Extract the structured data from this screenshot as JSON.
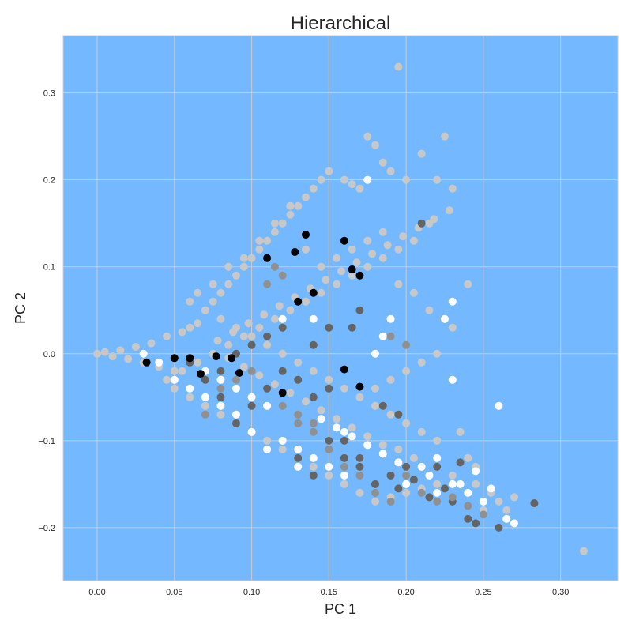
{
  "chart_data": {
    "type": "scatter",
    "title": "Hierarchical",
    "xlabel": "PC 1",
    "ylabel": "PC 2",
    "xlim": [
      -0.022,
      0.337
    ],
    "ylim": [
      -0.261,
      0.366
    ],
    "x_ticks": [
      {
        "value": 0.0,
        "label": "0.00"
      },
      {
        "value": 0.05,
        "label": "0.05"
      },
      {
        "value": 0.1,
        "label": "0.10"
      },
      {
        "value": 0.15,
        "label": "0.15"
      },
      {
        "value": 0.2,
        "label": "0.20"
      },
      {
        "value": 0.25,
        "label": "0.25"
      },
      {
        "value": 0.3,
        "label": "0.30"
      }
    ],
    "y_ticks": [
      {
        "value": -0.2,
        "label": "−0.2"
      },
      {
        "value": -0.1,
        "label": "−0.1"
      },
      {
        "value": 0.0,
        "label": "0.0"
      },
      {
        "value": 0.1,
        "label": "0.1"
      },
      {
        "value": 0.2,
        "label": "0.2"
      },
      {
        "value": 0.3,
        "label": "0.3"
      }
    ],
    "grid": true,
    "background_color": "#74b9ff",
    "cluster_colors": [
      "#c8c8c8",
      "#ffffff",
      "#646464",
      "#000000",
      "#909090"
    ],
    "series": [
      {
        "color": "#c8c8c8",
        "points": [
          [
            0.0,
            0.0
          ],
          [
            0.005,
            0.002
          ],
          [
            0.01,
            -0.003
          ],
          [
            0.015,
            0.004
          ],
          [
            0.02,
            -0.006
          ],
          [
            0.025,
            0.008
          ],
          [
            0.03,
            -0.01
          ],
          [
            0.035,
            0.012
          ],
          [
            0.04,
            -0.015
          ],
          [
            0.045,
            0.02
          ],
          [
            0.05,
            -0.02
          ],
          [
            0.055,
            0.025
          ],
          [
            0.06,
            0.03
          ],
          [
            0.065,
            0.035
          ],
          [
            0.07,
            0.05
          ],
          [
            0.075,
            0.06
          ],
          [
            0.08,
            0.07
          ],
          [
            0.085,
            0.08
          ],
          [
            0.09,
            0.09
          ],
          [
            0.095,
            0.1
          ],
          [
            0.1,
            0.11
          ],
          [
            0.105,
            0.12
          ],
          [
            0.11,
            0.13
          ],
          [
            0.115,
            0.14
          ],
          [
            0.12,
            0.15
          ],
          [
            0.125,
            0.16
          ],
          [
            0.13,
            0.17
          ],
          [
            0.135,
            0.18
          ],
          [
            0.14,
            0.19
          ],
          [
            0.145,
            0.2
          ],
          [
            0.15,
            0.21
          ],
          [
            0.16,
            0.2
          ],
          [
            0.165,
            0.195
          ],
          [
            0.17,
            0.19
          ],
          [
            0.175,
            0.25
          ],
          [
            0.18,
            0.24
          ],
          [
            0.185,
            0.22
          ],
          [
            0.19,
            0.21
          ],
          [
            0.195,
            0.33
          ],
          [
            0.2,
            0.2
          ],
          [
            0.21,
            0.23
          ],
          [
            0.22,
            0.2
          ],
          [
            0.225,
            0.25
          ],
          [
            0.23,
            0.19
          ],
          [
            0.24,
            0.08
          ],
          [
            0.215,
            0.15
          ],
          [
            0.205,
            0.13
          ],
          [
            0.195,
            0.12
          ],
          [
            0.185,
            0.11
          ],
          [
            0.175,
            0.1
          ],
          [
            0.165,
            0.09
          ],
          [
            0.155,
            0.08
          ],
          [
            0.145,
            0.07
          ],
          [
            0.135,
            0.06
          ],
          [
            0.125,
            0.05
          ],
          [
            0.115,
            0.04
          ],
          [
            0.105,
            0.03
          ],
          [
            0.095,
            0.02
          ],
          [
            0.085,
            0.01
          ],
          [
            0.075,
            0.0
          ],
          [
            0.065,
            -0.01
          ],
          [
            0.055,
            -0.02
          ],
          [
            0.045,
            -0.03
          ],
          [
            0.05,
            -0.04
          ],
          [
            0.06,
            -0.05
          ],
          [
            0.07,
            -0.06
          ],
          [
            0.08,
            -0.07
          ],
          [
            0.09,
            -0.08
          ],
          [
            0.1,
            -0.09
          ],
          [
            0.11,
            -0.1
          ],
          [
            0.12,
            -0.11
          ],
          [
            0.13,
            -0.12
          ],
          [
            0.14,
            -0.13
          ],
          [
            0.15,
            -0.14
          ],
          [
            0.16,
            -0.15
          ],
          [
            0.17,
            -0.16
          ],
          [
            0.18,
            -0.17
          ],
          [
            0.19,
            -0.165
          ],
          [
            0.2,
            -0.16
          ],
          [
            0.21,
            -0.155
          ],
          [
            0.22,
            -0.15
          ],
          [
            0.23,
            -0.14
          ],
          [
            0.235,
            -0.09
          ],
          [
            0.24,
            -0.12
          ],
          [
            0.245,
            -0.13
          ],
          [
            0.25,
            -0.18
          ],
          [
            0.26,
            -0.17
          ],
          [
            0.27,
            -0.165
          ],
          [
            0.315,
            -0.227
          ],
          [
            0.22,
            -0.1
          ],
          [
            0.21,
            -0.09
          ],
          [
            0.2,
            -0.08
          ],
          [
            0.19,
            -0.07
          ],
          [
            0.18,
            -0.06
          ],
          [
            0.17,
            -0.05
          ],
          [
            0.16,
            -0.04
          ],
          [
            0.15,
            -0.03
          ],
          [
            0.14,
            -0.02
          ],
          [
            0.13,
            -0.01
          ],
          [
            0.12,
            0.0
          ],
          [
            0.11,
            0.01
          ],
          [
            0.1,
            0.02
          ],
          [
            0.09,
            0.03
          ],
          [
            0.08,
            0.04
          ],
          [
            0.07,
            0.05
          ],
          [
            0.06,
            0.06
          ],
          [
            0.065,
            0.07
          ],
          [
            0.075,
            0.08
          ],
          [
            0.085,
            0.1
          ],
          [
            0.095,
            0.11
          ],
          [
            0.105,
            0.13
          ],
          [
            0.115,
            0.15
          ],
          [
            0.125,
            0.17
          ],
          [
            0.135,
            0.12
          ],
          [
            0.145,
            0.1
          ],
          [
            0.155,
            0.11
          ],
          [
            0.165,
            0.12
          ],
          [
            0.175,
            0.13
          ],
          [
            0.185,
            0.14
          ],
          [
            0.195,
            0.08
          ],
          [
            0.205,
            0.07
          ],
          [
            0.215,
            0.05
          ],
          [
            0.225,
            0.04
          ],
          [
            0.23,
            0.03
          ],
          [
            0.22,
            0.0
          ],
          [
            0.21,
            -0.01
          ],
          [
            0.2,
            -0.02
          ],
          [
            0.19,
            -0.03
          ],
          [
            0.18,
            -0.04
          ],
          [
            0.245,
            -0.15
          ],
          [
            0.255,
            -0.16
          ],
          [
            0.265,
            -0.18
          ],
          [
            0.205,
            -0.12
          ],
          [
            0.195,
            -0.11
          ],
          [
            0.185,
            -0.105
          ],
          [
            0.175,
            -0.095
          ],
          [
            0.165,
            -0.085
          ],
          [
            0.155,
            -0.075
          ],
          [
            0.145,
            -0.065
          ],
          [
            0.135,
            -0.055
          ],
          [
            0.125,
            -0.045
          ],
          [
            0.115,
            -0.035
          ],
          [
            0.105,
            -0.025
          ],
          [
            0.095,
            -0.015
          ],
          [
            0.085,
            -0.005
          ],
          [
            0.078,
            0.015
          ],
          [
            0.088,
            0.025
          ],
          [
            0.098,
            0.035
          ],
          [
            0.108,
            0.045
          ],
          [
            0.118,
            0.055
          ],
          [
            0.128,
            0.065
          ],
          [
            0.138,
            0.075
          ],
          [
            0.148,
            0.085
          ],
          [
            0.158,
            0.095
          ],
          [
            0.168,
            0.105
          ],
          [
            0.178,
            0.115
          ],
          [
            0.188,
            0.125
          ],
          [
            0.198,
            0.135
          ],
          [
            0.208,
            0.145
          ],
          [
            0.218,
            0.155
          ],
          [
            0.228,
            0.165
          ]
        ]
      },
      {
        "color": "#ffffff",
        "points": [
          [
            0.03,
            0.0
          ],
          [
            0.04,
            -0.01
          ],
          [
            0.05,
            -0.03
          ],
          [
            0.06,
            -0.04
          ],
          [
            0.07,
            -0.05
          ],
          [
            0.08,
            -0.06
          ],
          [
            0.09,
            -0.07
          ],
          [
            0.1,
            -0.09
          ],
          [
            0.11,
            -0.11
          ],
          [
            0.12,
            -0.1
          ],
          [
            0.13,
            -0.11
          ],
          [
            0.14,
            -0.12
          ],
          [
            0.15,
            -0.13
          ],
          [
            0.16,
            -0.14
          ],
          [
            0.17,
            -0.12
          ],
          [
            0.18,
            0.0
          ],
          [
            0.185,
            0.02
          ],
          [
            0.19,
            0.04
          ],
          [
            0.2,
            -0.15
          ],
          [
            0.21,
            -0.13
          ],
          [
            0.22,
            -0.16
          ],
          [
            0.23,
            -0.15
          ],
          [
            0.24,
            -0.16
          ],
          [
            0.25,
            -0.17
          ],
          [
            0.26,
            -0.06
          ],
          [
            0.265,
            -0.19
          ],
          [
            0.27,
            -0.195
          ],
          [
            0.23,
            0.06
          ],
          [
            0.225,
            0.04
          ],
          [
            0.23,
            -0.03
          ],
          [
            0.175,
            0.2
          ],
          [
            0.14,
            0.04
          ],
          [
            0.12,
            0.04
          ],
          [
            0.16,
            -0.09
          ],
          [
            0.15,
            -0.1
          ],
          [
            0.13,
            -0.13
          ],
          [
            0.145,
            -0.075
          ],
          [
            0.155,
            -0.085
          ],
          [
            0.165,
            -0.095
          ],
          [
            0.175,
            -0.105
          ],
          [
            0.185,
            -0.115
          ],
          [
            0.195,
            -0.125
          ],
          [
            0.215,
            -0.14
          ],
          [
            0.235,
            -0.15
          ],
          [
            0.255,
            -0.155
          ],
          [
            0.245,
            -0.135
          ],
          [
            0.22,
            -0.12
          ],
          [
            0.11,
            -0.06
          ],
          [
            0.1,
            -0.05
          ],
          [
            0.09,
            -0.04
          ],
          [
            0.08,
            -0.03
          ],
          [
            0.07,
            -0.02
          ]
        ]
      },
      {
        "color": "#646464",
        "points": [
          [
            0.06,
            -0.01
          ],
          [
            0.07,
            -0.03
          ],
          [
            0.08,
            -0.05
          ],
          [
            0.09,
            -0.08
          ],
          [
            0.1,
            -0.06
          ],
          [
            0.11,
            -0.04
          ],
          [
            0.12,
            -0.02
          ],
          [
            0.13,
            -0.03
          ],
          [
            0.14,
            -0.05
          ],
          [
            0.15,
            -0.04
          ],
          [
            0.16,
            -0.1
          ],
          [
            0.17,
            -0.12
          ],
          [
            0.18,
            -0.15
          ],
          [
            0.19,
            -0.14
          ],
          [
            0.2,
            -0.13
          ],
          [
            0.21,
            0.15
          ],
          [
            0.22,
            -0.13
          ],
          [
            0.23,
            -0.17
          ],
          [
            0.24,
            -0.19
          ],
          [
            0.245,
            -0.195
          ],
          [
            0.26,
            -0.2
          ],
          [
            0.283,
            -0.172
          ],
          [
            0.13,
            -0.12
          ],
          [
            0.14,
            -0.14
          ],
          [
            0.15,
            -0.1
          ],
          [
            0.16,
            -0.12
          ],
          [
            0.17,
            -0.13
          ],
          [
            0.185,
            -0.06
          ],
          [
            0.195,
            -0.07
          ],
          [
            0.195,
            -0.155
          ],
          [
            0.205,
            -0.145
          ],
          [
            0.215,
            -0.165
          ],
          [
            0.225,
            -0.155
          ],
          [
            0.235,
            -0.125
          ],
          [
            0.17,
            0.05
          ],
          [
            0.165,
            0.03
          ],
          [
            0.15,
            0.03
          ],
          [
            0.14,
            0.01
          ],
          [
            0.12,
            0.03
          ],
          [
            0.11,
            0.02
          ],
          [
            0.1,
            0.01
          ],
          [
            0.09,
            0.0
          ],
          [
            0.08,
            -0.02
          ]
        ]
      },
      {
        "color": "#000000",
        "points": [
          [
            0.032,
            -0.01
          ],
          [
            0.05,
            -0.005
          ],
          [
            0.06,
            -0.005
          ],
          [
            0.067,
            -0.023
          ],
          [
            0.077,
            -0.003
          ],
          [
            0.087,
            -0.005
          ],
          [
            0.092,
            -0.022
          ],
          [
            0.11,
            0.11
          ],
          [
            0.12,
            -0.045
          ],
          [
            0.128,
            0.117
          ],
          [
            0.135,
            0.137
          ],
          [
            0.16,
            -0.018
          ],
          [
            0.165,
            0.097
          ],
          [
            0.17,
            0.09
          ],
          [
            0.17,
            -0.038
          ],
          [
            0.16,
            0.13
          ],
          [
            0.14,
            0.07
          ],
          [
            0.13,
            0.06
          ]
        ]
      },
      {
        "color": "#909090",
        "points": [
          [
            0.07,
            -0.07
          ],
          [
            0.08,
            -0.04
          ],
          [
            0.09,
            -0.03
          ],
          [
            0.1,
            -0.02
          ],
          [
            0.11,
            0.08
          ],
          [
            0.12,
            -0.06
          ],
          [
            0.13,
            -0.08
          ],
          [
            0.14,
            -0.09
          ],
          [
            0.15,
            -0.11
          ],
          [
            0.16,
            -0.13
          ],
          [
            0.17,
            -0.14
          ],
          [
            0.18,
            -0.16
          ],
          [
            0.19,
            -0.17
          ],
          [
            0.2,
            -0.14
          ],
          [
            0.21,
            -0.16
          ],
          [
            0.22,
            -0.17
          ],
          [
            0.23,
            -0.165
          ],
          [
            0.24,
            -0.175
          ],
          [
            0.25,
            -0.185
          ],
          [
            0.19,
            0.02
          ],
          [
            0.2,
            0.01
          ],
          [
            0.12,
            0.09
          ],
          [
            0.115,
            0.1
          ],
          [
            0.13,
            -0.07
          ],
          [
            0.14,
            -0.08
          ]
        ]
      }
    ]
  }
}
